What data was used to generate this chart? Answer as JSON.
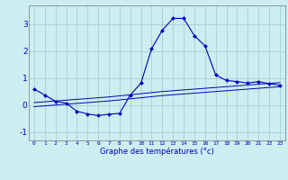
{
  "title": "Graphe des températures (°c)",
  "background_color": "#cceef0",
  "line_color": "#0000bb",
  "grid_color": "#99cccc",
  "hours": [
    0,
    1,
    2,
    3,
    4,
    5,
    6,
    7,
    8,
    9,
    10,
    11,
    12,
    13,
    14,
    15,
    16,
    17,
    18,
    19,
    20,
    21,
    22,
    23
  ],
  "xlabels": [
    "0",
    "1",
    "2",
    "3",
    "4",
    "5",
    "6",
    "7",
    "8",
    "9",
    "10",
    "11",
    "12",
    "13",
    "14",
    "15",
    "16",
    "17",
    "18",
    "19",
    "20",
    "21",
    "22",
    "23"
  ],
  "main_temps": [
    0.6,
    0.38,
    0.15,
    0.08,
    -0.22,
    -0.32,
    -0.38,
    -0.33,
    -0.3,
    0.38,
    0.82,
    2.1,
    2.78,
    3.22,
    3.22,
    2.58,
    2.2,
    1.12,
    0.92,
    0.88,
    0.82,
    0.88,
    0.8,
    0.75
  ],
  "avg1": [
    0.1,
    0.13,
    0.16,
    0.19,
    0.22,
    0.25,
    0.28,
    0.31,
    0.35,
    0.39,
    0.43,
    0.47,
    0.51,
    0.54,
    0.57,
    0.6,
    0.63,
    0.66,
    0.69,
    0.72,
    0.75,
    0.78,
    0.81,
    0.84
  ],
  "avg2": [
    -0.05,
    -0.02,
    0.01,
    0.04,
    0.07,
    0.1,
    0.13,
    0.16,
    0.2,
    0.24,
    0.28,
    0.32,
    0.36,
    0.39,
    0.42,
    0.45,
    0.48,
    0.51,
    0.54,
    0.57,
    0.6,
    0.63,
    0.66,
    0.69
  ],
  "ylim": [
    -1.3,
    3.7
  ],
  "yticks": [
    -1,
    0,
    1,
    2,
    3
  ],
  "xlim": [
    -0.5,
    23.5
  ],
  "figsize": [
    3.2,
    2.0
  ],
  "dpi": 100
}
